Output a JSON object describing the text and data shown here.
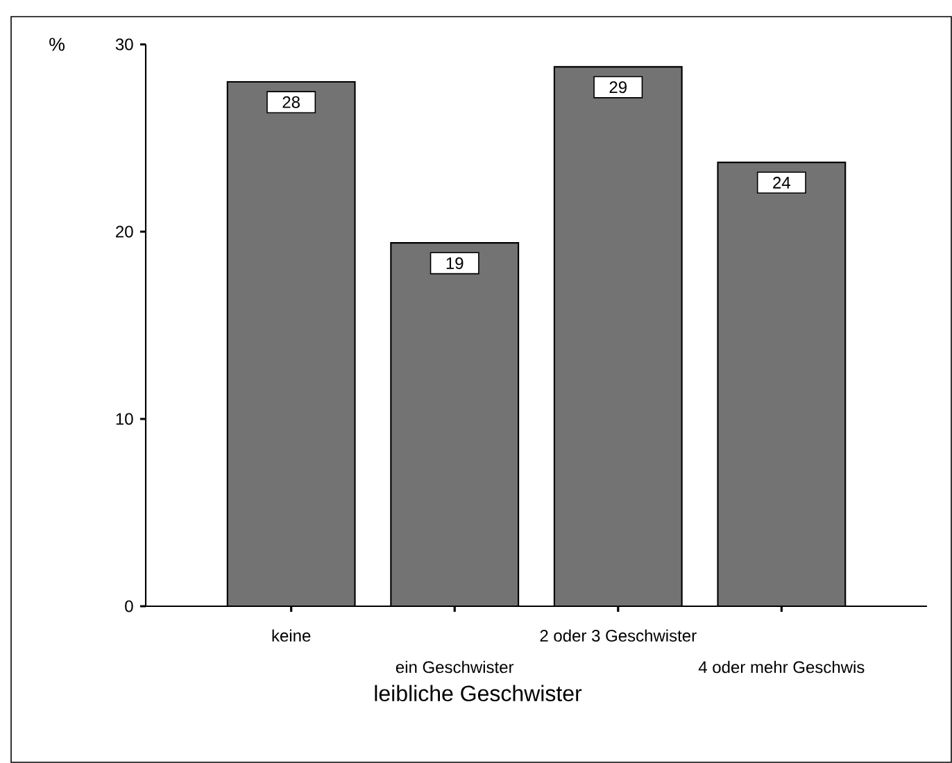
{
  "chart_data": {
    "type": "bar",
    "xlabel": "leibliche Geschwister",
    "ylabel": "%",
    "categories": [
      "keine",
      "ein Geschwister",
      "2 oder 3 Geschwister",
      "4 oder mehr Geschwis"
    ],
    "values": [
      28.0,
      19.4,
      28.8,
      23.7
    ],
    "value_labels": [
      "28",
      "19",
      "29",
      "24"
    ],
    "color": "#737373",
    "ylim": [
      0,
      30
    ],
    "yticks": [
      0,
      10,
      20,
      30
    ]
  }
}
